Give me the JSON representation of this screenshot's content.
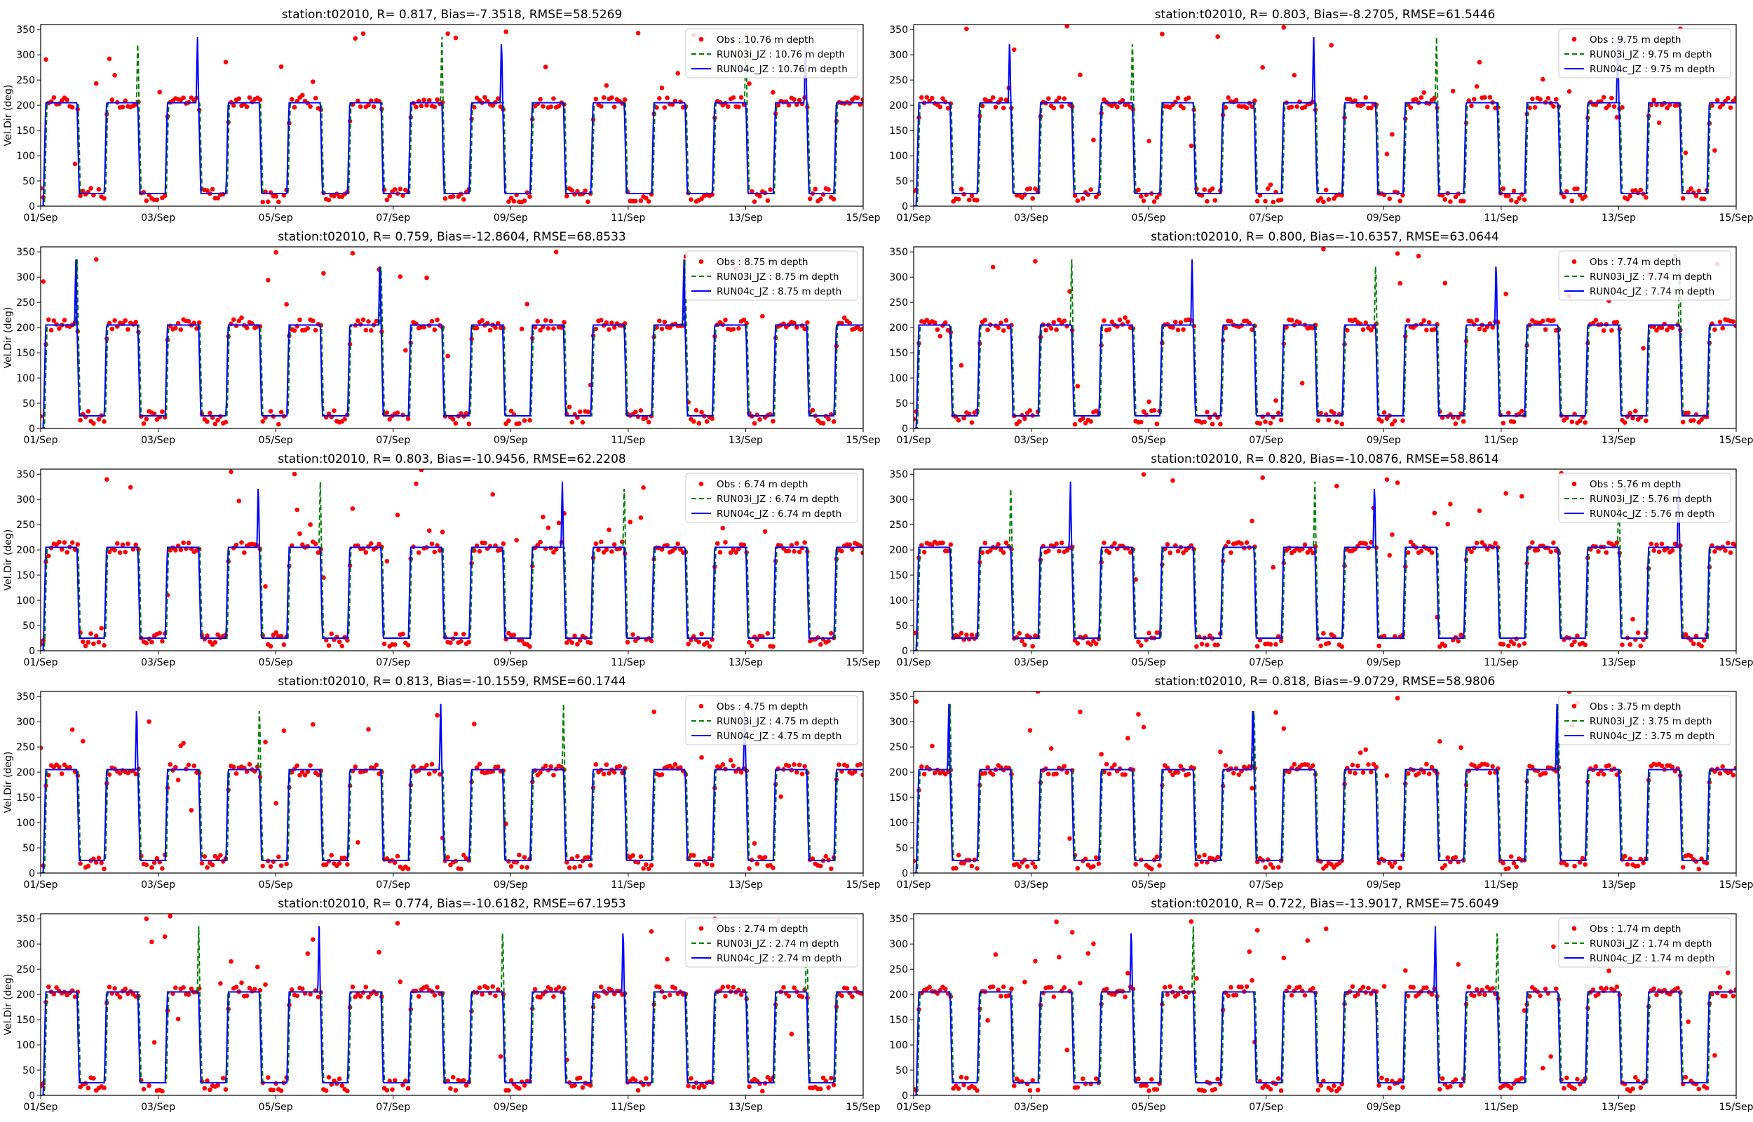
{
  "figure": {
    "colors": {
      "obs": "#ff0000",
      "run03": "#008000",
      "run04": "#0000ff",
      "axis": "#000000",
      "background": "#ffffff"
    }
  },
  "chart_data": [
    {
      "type": "scatter+line",
      "title": "station:t02010, R= 0.817, Bias=-7.3518, RMSE=58.5269",
      "ylabel": "Vel.Dir (deg)",
      "ylim": [
        0,
        360
      ],
      "xlim": [
        "01/Sep",
        "15/Sep"
      ],
      "x_ticks": [
        "01/Sep",
        "03/Sep",
        "05/Sep",
        "07/Sep",
        "09/Sep",
        "11/Sep",
        "13/Sep",
        "15/Sep"
      ],
      "y_ticks": [
        0,
        50,
        100,
        150,
        200,
        250,
        300,
        350
      ],
      "legend_position": "upper right",
      "series": [
        {
          "name": "Obs : 10.76 m depth",
          "style": "dots",
          "color": "#ff0000"
        },
        {
          "name": "RUN03i_JZ : 10.76 m depth",
          "style": "dashed",
          "color": "#008000"
        },
        {
          "name": "RUN04c_JZ : 10.76 m depth",
          "style": "solid",
          "color": "#0000ff"
        }
      ],
      "pattern": {
        "period_days": 1.035,
        "phase_days": 0.05,
        "low_deg": 25,
        "high_deg": 205,
        "high_fraction": 0.55
      }
    },
    {
      "type": "scatter+line",
      "title": "station:t02010, R= 0.803, Bias=-8.2705, RMSE=61.5446",
      "ylabel": "",
      "ylim": [
        0,
        360
      ],
      "xlim": [
        "01/Sep",
        "15/Sep"
      ],
      "x_ticks": [
        "01/Sep",
        "03/Sep",
        "05/Sep",
        "07/Sep",
        "09/Sep",
        "11/Sep",
        "13/Sep",
        "15/Sep"
      ],
      "y_ticks": [
        0,
        50,
        100,
        150,
        200,
        250,
        300,
        350
      ],
      "legend_position": "upper right",
      "series": [
        {
          "name": "Obs : 9.75 m depth",
          "style": "dots",
          "color": "#ff0000"
        },
        {
          "name": "RUN03i_JZ : 9.75 m depth",
          "style": "dashed",
          "color": "#008000"
        },
        {
          "name": "RUN04c_JZ : 9.75 m depth",
          "style": "solid",
          "color": "#0000ff"
        }
      ],
      "pattern": {
        "period_days": 1.035,
        "phase_days": 0.05,
        "low_deg": 25,
        "high_deg": 205,
        "high_fraction": 0.55
      }
    },
    {
      "type": "scatter+line",
      "title": "station:t02010, R= 0.759, Bias=-12.8604, RMSE=68.8533",
      "ylabel": "Vel.Dir (deg)",
      "ylim": [
        0,
        360
      ],
      "xlim": [
        "01/Sep",
        "15/Sep"
      ],
      "x_ticks": [
        "01/Sep",
        "03/Sep",
        "05/Sep",
        "07/Sep",
        "09/Sep",
        "11/Sep",
        "13/Sep",
        "15/Sep"
      ],
      "y_ticks": [
        0,
        50,
        100,
        150,
        200,
        250,
        300,
        350
      ],
      "legend_position": "upper right",
      "series": [
        {
          "name": "Obs : 8.75 m depth",
          "style": "dots",
          "color": "#ff0000"
        },
        {
          "name": "RUN03i_JZ : 8.75 m depth",
          "style": "dashed",
          "color": "#008000"
        },
        {
          "name": "RUN04c_JZ : 8.75 m depth",
          "style": "solid",
          "color": "#0000ff"
        }
      ],
      "pattern": {
        "period_days": 1.035,
        "phase_days": 0.05,
        "low_deg": 25,
        "high_deg": 205,
        "high_fraction": 0.55
      }
    },
    {
      "type": "scatter+line",
      "title": "station:t02010, R= 0.800, Bias=-10.6357, RMSE=63.0644",
      "ylabel": "",
      "ylim": [
        0,
        360
      ],
      "xlim": [
        "01/Sep",
        "15/Sep"
      ],
      "x_ticks": [
        "01/Sep",
        "03/Sep",
        "05/Sep",
        "07/Sep",
        "09/Sep",
        "11/Sep",
        "13/Sep",
        "15/Sep"
      ],
      "y_ticks": [
        0,
        50,
        100,
        150,
        200,
        250,
        300,
        350
      ],
      "legend_position": "upper right",
      "series": [
        {
          "name": "Obs : 7.74 m depth",
          "style": "dots",
          "color": "#ff0000"
        },
        {
          "name": "RUN03i_JZ : 7.74 m depth",
          "style": "dashed",
          "color": "#008000"
        },
        {
          "name": "RUN04c_JZ : 7.74 m depth",
          "style": "solid",
          "color": "#0000ff"
        }
      ],
      "pattern": {
        "period_days": 1.035,
        "phase_days": 0.05,
        "low_deg": 25,
        "high_deg": 205,
        "high_fraction": 0.55
      }
    },
    {
      "type": "scatter+line",
      "title": "station:t02010, R= 0.803, Bias=-10.9456, RMSE=62.2208",
      "ylabel": "Vel.Dir (deg)",
      "ylim": [
        0,
        360
      ],
      "xlim": [
        "01/Sep",
        "15/Sep"
      ],
      "x_ticks": [
        "01/Sep",
        "03/Sep",
        "05/Sep",
        "07/Sep",
        "09/Sep",
        "11/Sep",
        "13/Sep",
        "15/Sep"
      ],
      "y_ticks": [
        0,
        50,
        100,
        150,
        200,
        250,
        300,
        350
      ],
      "legend_position": "upper right",
      "series": [
        {
          "name": "Obs : 6.74 m depth",
          "style": "dots",
          "color": "#ff0000"
        },
        {
          "name": "RUN03i_JZ : 6.74 m depth",
          "style": "dashed",
          "color": "#008000"
        },
        {
          "name": "RUN04c_JZ : 6.74 m depth",
          "style": "solid",
          "color": "#0000ff"
        }
      ],
      "pattern": {
        "period_days": 1.035,
        "phase_days": 0.05,
        "low_deg": 25,
        "high_deg": 205,
        "high_fraction": 0.55
      }
    },
    {
      "type": "scatter+line",
      "title": "station:t02010, R= 0.820, Bias=-10.0876, RMSE=58.8614",
      "ylabel": "",
      "ylim": [
        0,
        360
      ],
      "xlim": [
        "01/Sep",
        "15/Sep"
      ],
      "x_ticks": [
        "01/Sep",
        "03/Sep",
        "05/Sep",
        "07/Sep",
        "09/Sep",
        "11/Sep",
        "13/Sep",
        "15/Sep"
      ],
      "y_ticks": [
        0,
        50,
        100,
        150,
        200,
        250,
        300,
        350
      ],
      "legend_position": "upper right",
      "series": [
        {
          "name": "Obs : 5.76 m depth",
          "style": "dots",
          "color": "#ff0000"
        },
        {
          "name": "RUN03i_JZ : 5.76 m depth",
          "style": "dashed",
          "color": "#008000"
        },
        {
          "name": "RUN04c_JZ : 5.76 m depth",
          "style": "solid",
          "color": "#0000ff"
        }
      ],
      "pattern": {
        "period_days": 1.035,
        "phase_days": 0.05,
        "low_deg": 25,
        "high_deg": 205,
        "high_fraction": 0.55
      }
    },
    {
      "type": "scatter+line",
      "title": "station:t02010, R= 0.813, Bias=-10.1559, RMSE=60.1744",
      "ylabel": "Vel.Dir (deg)",
      "ylim": [
        0,
        360
      ],
      "xlim": [
        "01/Sep",
        "15/Sep"
      ],
      "x_ticks": [
        "01/Sep",
        "03/Sep",
        "05/Sep",
        "07/Sep",
        "09/Sep",
        "11/Sep",
        "13/Sep",
        "15/Sep"
      ],
      "y_ticks": [
        0,
        50,
        100,
        150,
        200,
        250,
        300,
        350
      ],
      "legend_position": "upper right",
      "series": [
        {
          "name": "Obs : 4.75 m depth",
          "style": "dots",
          "color": "#ff0000"
        },
        {
          "name": "RUN03i_JZ : 4.75 m depth",
          "style": "dashed",
          "color": "#008000"
        },
        {
          "name": "RUN04c_JZ : 4.75 m depth",
          "style": "solid",
          "color": "#0000ff"
        }
      ],
      "pattern": {
        "period_days": 1.035,
        "phase_days": 0.05,
        "low_deg": 25,
        "high_deg": 205,
        "high_fraction": 0.55
      }
    },
    {
      "type": "scatter+line",
      "title": "station:t02010, R= 0.818, Bias=-9.0729, RMSE=58.9806",
      "ylabel": "",
      "ylim": [
        0,
        360
      ],
      "xlim": [
        "01/Sep",
        "15/Sep"
      ],
      "x_ticks": [
        "01/Sep",
        "03/Sep",
        "05/Sep",
        "07/Sep",
        "09/Sep",
        "11/Sep",
        "13/Sep",
        "15/Sep"
      ],
      "y_ticks": [
        0,
        50,
        100,
        150,
        200,
        250,
        300,
        350
      ],
      "legend_position": "upper right",
      "series": [
        {
          "name": "Obs : 3.75 m depth",
          "style": "dots",
          "color": "#ff0000"
        },
        {
          "name": "RUN03i_JZ : 3.75 m depth",
          "style": "dashed",
          "color": "#008000"
        },
        {
          "name": "RUN04c_JZ : 3.75 m depth",
          "style": "solid",
          "color": "#0000ff"
        }
      ],
      "pattern": {
        "period_days": 1.035,
        "phase_days": 0.05,
        "low_deg": 25,
        "high_deg": 205,
        "high_fraction": 0.55
      }
    },
    {
      "type": "scatter+line",
      "title": "station:t02010, R= 0.774, Bias=-10.6182, RMSE=67.1953",
      "ylabel": "Vel.Dir (deg)",
      "ylim": [
        0,
        360
      ],
      "xlim": [
        "01/Sep",
        "15/Sep"
      ],
      "x_ticks": [
        "01/Sep",
        "03/Sep",
        "05/Sep",
        "07/Sep",
        "09/Sep",
        "11/Sep",
        "13/Sep",
        "15/Sep"
      ],
      "y_ticks": [
        0,
        50,
        100,
        150,
        200,
        250,
        300,
        350
      ],
      "legend_position": "upper right",
      "series": [
        {
          "name": "Obs : 2.74 m depth",
          "style": "dots",
          "color": "#ff0000"
        },
        {
          "name": "RUN03i_JZ : 2.74 m depth",
          "style": "dashed",
          "color": "#008000"
        },
        {
          "name": "RUN04c_JZ : 2.74 m depth",
          "style": "solid",
          "color": "#0000ff"
        }
      ],
      "pattern": {
        "period_days": 1.035,
        "phase_days": 0.05,
        "low_deg": 25,
        "high_deg": 205,
        "high_fraction": 0.55
      }
    },
    {
      "type": "scatter+line",
      "title": "station:t02010, R= 0.722, Bias=-13.9017, RMSE=75.6049",
      "ylabel": "",
      "ylim": [
        0,
        360
      ],
      "xlim": [
        "01/Sep",
        "15/Sep"
      ],
      "x_ticks": [
        "01/Sep",
        "03/Sep",
        "05/Sep",
        "07/Sep",
        "09/Sep",
        "11/Sep",
        "13/Sep",
        "15/Sep"
      ],
      "y_ticks": [
        0,
        50,
        100,
        150,
        200,
        250,
        300,
        350
      ],
      "legend_position": "upper right",
      "series": [
        {
          "name": "Obs : 1.74 m depth",
          "style": "dots",
          "color": "#ff0000"
        },
        {
          "name": "RUN03i_JZ : 1.74 m depth",
          "style": "dashed",
          "color": "#008000"
        },
        {
          "name": "RUN04c_JZ : 1.74 m depth",
          "style": "solid",
          "color": "#0000ff"
        }
      ],
      "pattern": {
        "period_days": 1.035,
        "phase_days": 0.05,
        "low_deg": 25,
        "high_deg": 205,
        "high_fraction": 0.55
      }
    }
  ]
}
